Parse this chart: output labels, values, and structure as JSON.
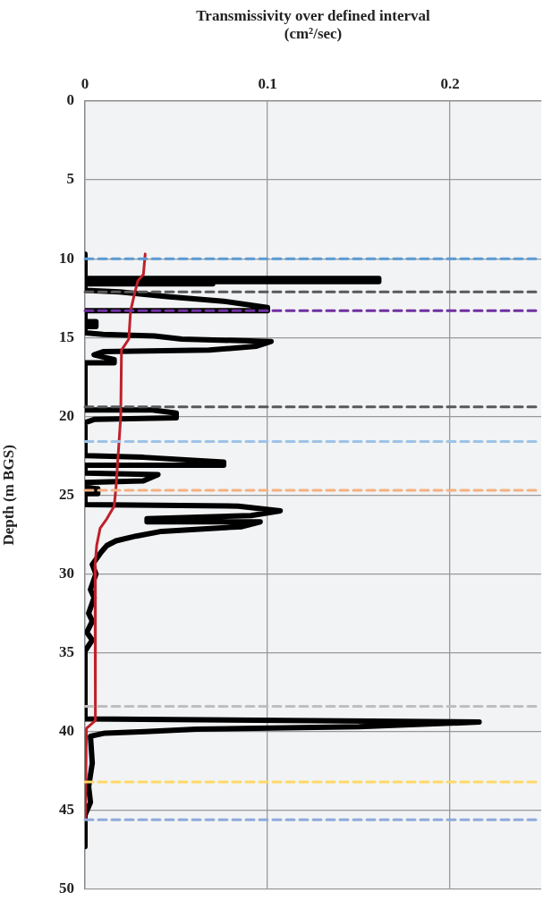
{
  "chart_data": {
    "type": "line",
    "xlabel": "Transmissivity over defined interval\n(cm²/sec)",
    "ylabel": "Depth (m BGS)",
    "xlim": [
      0,
      0.25
    ],
    "xticks": [
      0,
      0.1,
      0.2
    ],
    "ylim": [
      50,
      0
    ],
    "yticks": [
      0,
      5,
      10,
      15,
      20,
      25,
      30,
      35,
      40,
      45,
      50
    ],
    "grid": true,
    "legend": false,
    "marker": "none",
    "line_style": "solid",
    "series": [
      {
        "color": "#000000",
        "x": [
          0,
          0,
          0.161,
          0.161,
          0.07,
          0.07,
          0,
          0,
          0.019,
          0.045,
          0.076,
          0.1,
          0.1,
          0,
          0,
          0.006,
          0.006,
          0,
          0,
          0.01,
          0.038,
          0.053,
          0.102,
          0.094,
          0.068,
          0.01,
          0.005,
          0.016,
          0.016,
          0,
          0,
          0.037,
          0.05,
          0.05,
          0.005,
          0,
          0,
          0.032,
          0.076,
          0.076,
          0,
          0,
          0.04,
          0.032,
          0,
          0,
          0.007,
          0.007,
          0,
          0,
          0.084,
          0.107,
          0.091,
          0.034,
          0.034,
          0.096,
          0.086,
          0.042,
          0.028,
          0.017,
          0.012,
          0.009,
          0.004,
          0.006,
          0.003,
          0.005,
          0.002,
          0.004,
          0.001,
          0.004,
          0,
          0,
          0.216,
          0.15,
          0.061,
          0.033,
          0.011,
          0.003,
          0.004,
          0.002,
          0.003,
          0,
          0
        ],
        "values": [
          9.7,
          11.25,
          11.25,
          11.45,
          11.45,
          11.6,
          11.6,
          12.0,
          12.1,
          12.4,
          12.7,
          13.1,
          13.3,
          13.3,
          14.0,
          14.0,
          14.3,
          14.3,
          14.7,
          14.8,
          14.9,
          15.1,
          15.25,
          15.55,
          15.8,
          15.9,
          16.1,
          16.4,
          16.6,
          16.6,
          19.6,
          19.6,
          19.8,
          20.1,
          20.2,
          20.4,
          22.5,
          22.6,
          22.9,
          23.1,
          23.1,
          23.6,
          23.7,
          24.1,
          24.2,
          24.5,
          24.6,
          24.9,
          24.9,
          25.6,
          25.7,
          26.0,
          26.3,
          26.5,
          26.7,
          26.7,
          27.0,
          27.3,
          27.6,
          27.9,
          28.2,
          28.6,
          29.4,
          30,
          31,
          31.5,
          32.5,
          33,
          33.7,
          34.2,
          34.9,
          39.2,
          39.4,
          39.7,
          39.85,
          40.0,
          40.1,
          40.3,
          42,
          43.5,
          44.5,
          45.3,
          47.3
        ]
      },
      {
        "color": "#c0202a",
        "x": [
          0.033,
          0.032,
          0.029,
          0.027,
          0.025,
          0.024,
          0.02,
          0.0196,
          0.017,
          0.016,
          0.012,
          0.0083,
          0.0064,
          0.0055,
          0.0057,
          0.0008,
          0.0002
        ],
        "values": [
          9.7,
          11.0,
          11.4,
          12.3,
          13.3,
          15.1,
          15.8,
          20,
          24.5,
          25.7,
          26.5,
          27.1,
          28.2,
          29.5,
          39.3,
          39.8,
          45.6
        ]
      }
    ],
    "ref_lines": [
      {
        "axis": "y",
        "value": 10,
        "color": "#5b9bd5",
        "line_style": "dashed"
      },
      {
        "axis": "y",
        "value": 12.1,
        "color": "#595959",
        "line_style": "dashed"
      },
      {
        "axis": "y",
        "value": 13.3,
        "color": "#7030a0",
        "line_style": "dashed"
      },
      {
        "axis": "y",
        "value": 19.4,
        "color": "#595959",
        "line_style": "dashed"
      },
      {
        "axis": "y",
        "value": 21.6,
        "color": "#9dc3e6",
        "line_style": "dashed"
      },
      {
        "axis": "y",
        "value": 24.7,
        "color": "#f4b183",
        "line_style": "dashed"
      },
      {
        "axis": "y",
        "value": 38.4,
        "color": "#bfbfbf",
        "line_style": "dashed"
      },
      {
        "axis": "y",
        "value": 43.2,
        "color": "#ffd966",
        "line_style": "dashed"
      },
      {
        "axis": "y",
        "value": 45.6,
        "color": "#8faadc",
        "line_style": "dashed"
      }
    ]
  }
}
